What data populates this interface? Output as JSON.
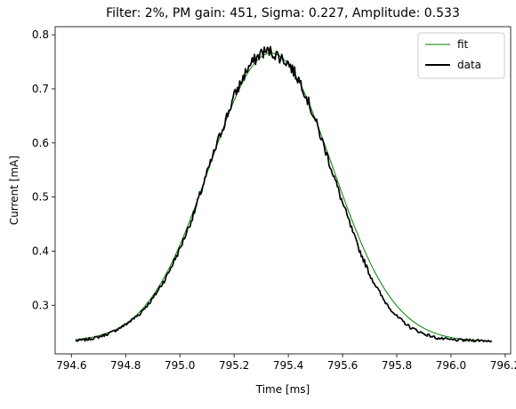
{
  "chart_data": {
    "type": "line",
    "title": "Filter: 2%, PM gain: 451, Sigma: 0.227, Amplitude: 0.533",
    "xlabel": "Time [ms]",
    "ylabel": "Current [mA]",
    "xlim": [
      794.54,
      796.22
    ],
    "ylim": [
      0.21,
      0.815
    ],
    "x_ticks": [
      794.6,
      794.8,
      795.0,
      795.2,
      795.4,
      795.6,
      795.8,
      796.0,
      796.2
    ],
    "x_tick_labels": [
      "794.6",
      "794.8",
      "795.0",
      "795.2",
      "795.4",
      "795.6",
      "795.8",
      "796.0",
      "796.2"
    ],
    "y_ticks": [
      0.3,
      0.4,
      0.5,
      0.6,
      0.7,
      0.8
    ],
    "y_tick_labels": [
      "0.3",
      "0.4",
      "0.5",
      "0.6",
      "0.7",
      "0.8"
    ],
    "grid": false,
    "legend_position": "top-right",
    "series": [
      {
        "name": "fit",
        "color": "#008000",
        "style": "thin",
        "model": {
          "type": "gaussian",
          "baseline": 0.233,
          "amplitude": 0.533,
          "center": 795.336,
          "sigma": 0.227
        },
        "x_range": [
          794.615,
          796.15
        ]
      },
      {
        "name": "data",
        "color": "#000000",
        "style": "thick",
        "x": [
          794.615,
          794.65,
          794.7,
          794.75,
          794.8,
          794.85,
          794.9,
          794.95,
          795.0,
          795.05,
          795.1,
          795.15,
          795.2,
          795.25,
          795.3,
          795.33,
          795.36,
          795.4,
          795.45,
          795.5,
          795.55,
          795.6,
          795.65,
          795.7,
          795.75,
          795.8,
          795.85,
          795.9,
          795.95,
          796.0,
          796.05,
          796.1,
          796.15
        ],
        "y": [
          0.234,
          0.236,
          0.241,
          0.25,
          0.264,
          0.283,
          0.312,
          0.352,
          0.404,
          0.467,
          0.544,
          0.617,
          0.686,
          0.738,
          0.767,
          0.77,
          0.762,
          0.748,
          0.708,
          0.641,
          0.566,
          0.489,
          0.417,
          0.357,
          0.311,
          0.279,
          0.259,
          0.247,
          0.239,
          0.236,
          0.235,
          0.235,
          0.234
        ]
      }
    ]
  }
}
